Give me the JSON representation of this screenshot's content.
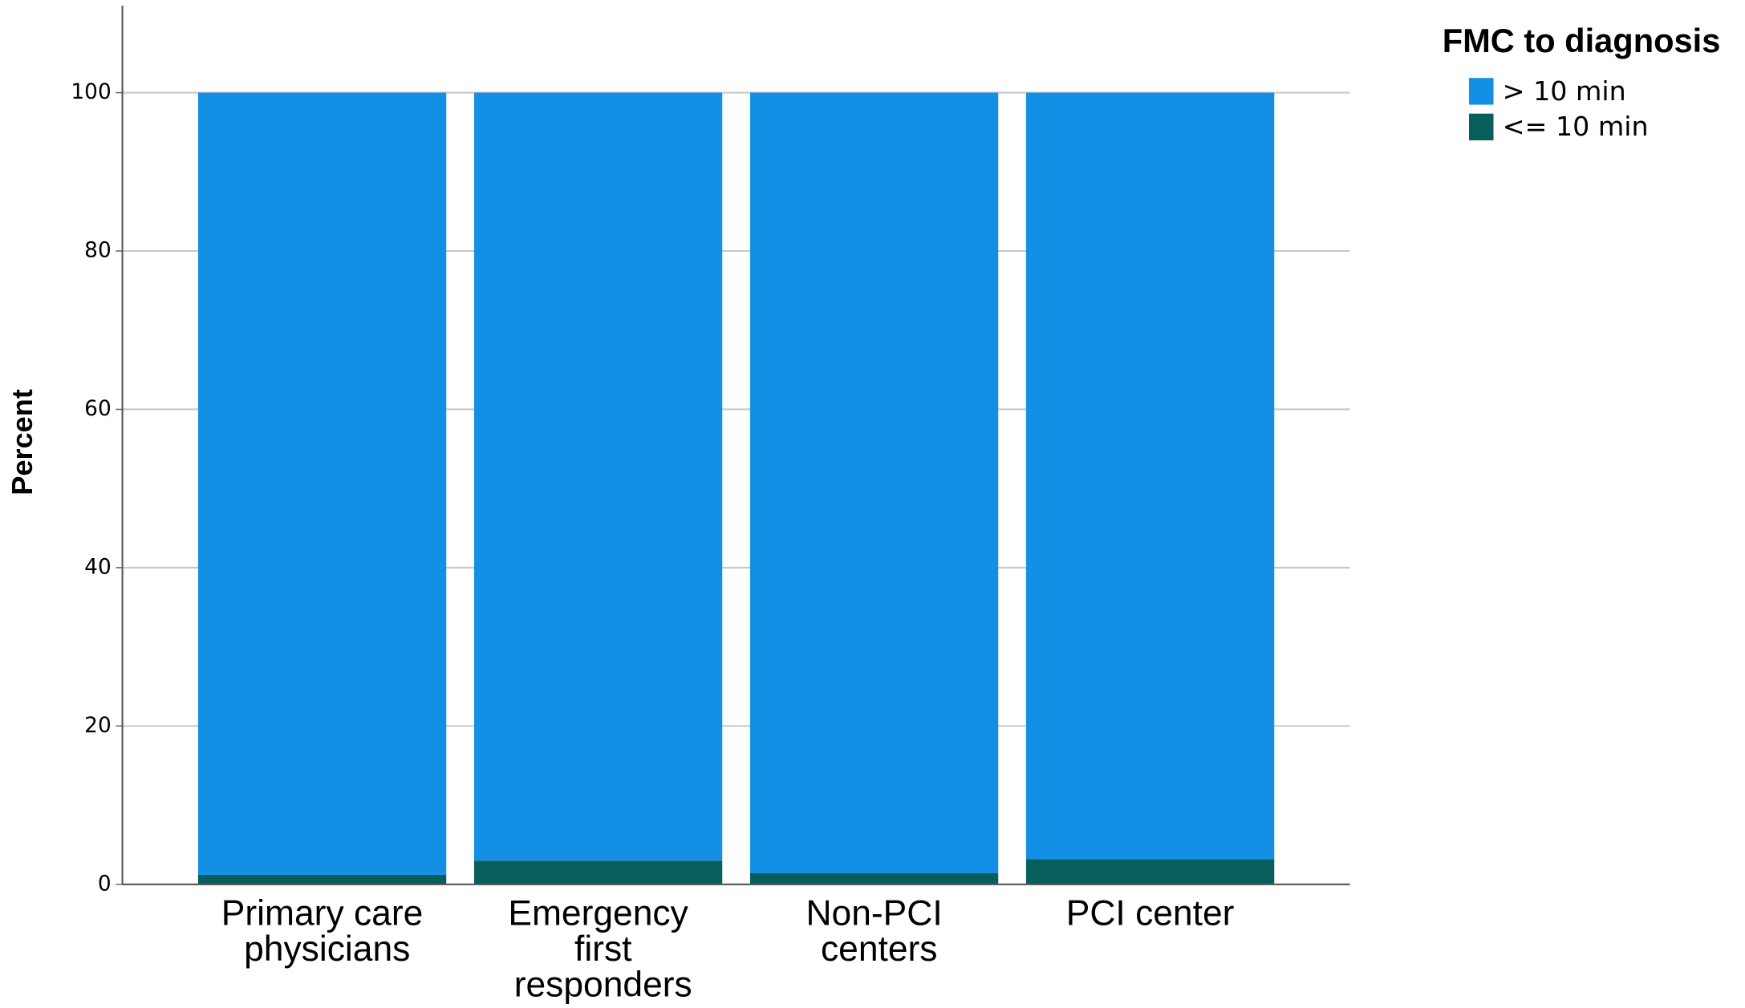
{
  "chart_data": {
    "type": "stacked-bar",
    "y_label": "Percent",
    "legend_title": "FMC to diagnosis",
    "legend_position": "right",
    "categories": [
      "Primary care physicians",
      "Emergency first responders",
      "Non-PCI centers",
      "PCI center"
    ],
    "series": [
      {
        "name": "> 10 min",
        "color": "#1390e6",
        "values": [
          98.8,
          97.0,
          98.6,
          96.8
        ]
      },
      {
        "name": "<= 10 min",
        "color": "#075e5a",
        "values": [
          1.2,
          3.0,
          1.4,
          3.2
        ]
      }
    ],
    "ylim": [
      0,
      111
    ],
    "yticks": [
      0,
      20,
      40,
      60,
      80,
      100
    ],
    "grid": true
  }
}
